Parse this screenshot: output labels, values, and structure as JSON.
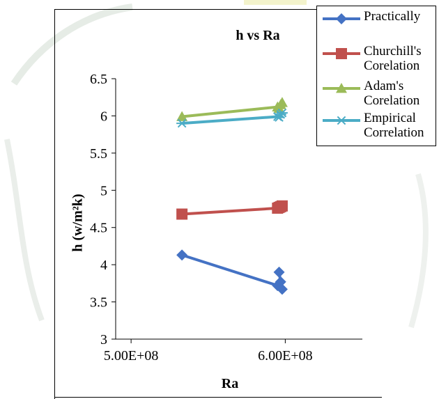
{
  "chart_data": {
    "type": "line",
    "title": "h vs Ra",
    "xlabel": "Ra",
    "ylabel": "h (w/m²k)",
    "xlim": [
      490000000,
      650000000
    ],
    "ylim": [
      3,
      6.5
    ],
    "xticks": [
      500000000,
      600000000
    ],
    "xtick_labels": [
      "5.00E+08",
      "6.00E+08"
    ],
    "yticks": [
      3,
      3.5,
      4,
      4.5,
      5,
      5.5,
      6,
      6.5
    ],
    "ytick_labels": [
      "3",
      "3.5",
      "4",
      "4.5",
      "5",
      "5.5",
      "6",
      "6.5"
    ],
    "grid": false,
    "legend": "top-right",
    "series": [
      {
        "name": "Practically",
        "color": "#4472C4",
        "marker": "diamond",
        "x": [
          533000000,
          595000000,
          598000000,
          597000000,
          596000000
        ],
        "y": [
          4.13,
          3.72,
          3.67,
          3.77,
          3.9
        ]
      },
      {
        "name": "Churchill's Corelation",
        "color": "#C0504D",
        "marker": "square",
        "x": [
          533000000,
          595000000,
          598000000,
          597000000,
          596000000
        ],
        "y": [
          4.68,
          4.76,
          4.79,
          4.78,
          4.77
        ]
      },
      {
        "name": "Adam's Corelation",
        "color": "#9BBB59",
        "marker": "triangle",
        "x": [
          533000000,
          595000000,
          598000000,
          597000000,
          596000000
        ],
        "y": [
          5.99,
          6.12,
          6.18,
          6.15,
          6.1
        ]
      },
      {
        "name": "Empirical Correlation",
        "color": "#4BACC6",
        "marker": "asterisk",
        "x": [
          533000000,
          595000000,
          598000000,
          597000000,
          596000000
        ],
        "y": [
          5.9,
          5.99,
          6.04,
          6.02,
          5.98
        ]
      }
    ]
  }
}
